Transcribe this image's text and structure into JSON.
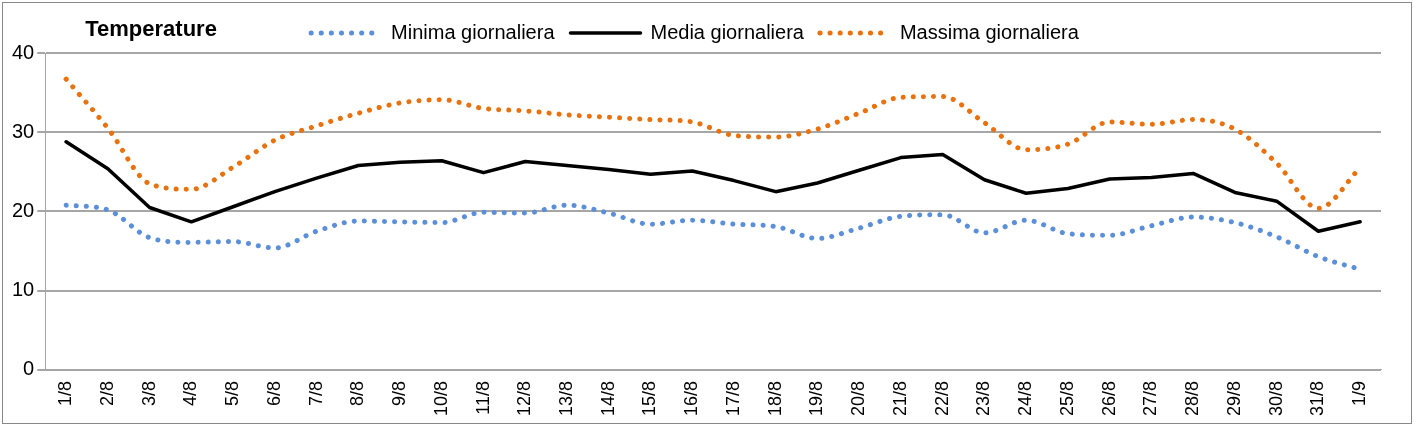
{
  "chart_data": {
    "type": "line",
    "title": "Temperature",
    "categories": [
      "1/8",
      "2/8",
      "3/8",
      "4/8",
      "5/8",
      "6/8",
      "7/8",
      "8/8",
      "9/8",
      "10/8",
      "11/8",
      "12/8",
      "13/8",
      "14/8",
      "15/8",
      "16/8",
      "17/8",
      "18/8",
      "19/8",
      "20/8",
      "21/8",
      "22/8",
      "23/8",
      "24/8",
      "25/8",
      "26/8",
      "27/8",
      "28/8",
      "29/8",
      "30/8",
      "31/8",
      "1/9"
    ],
    "series": [
      {
        "name": "Minima giornaliera",
        "color": "#5b8fd9",
        "line_style": "dotted",
        "values": [
          20.8,
          20.2,
          16.7,
          16.1,
          16.2,
          15.4,
          17.5,
          18.8,
          18.7,
          18.6,
          19.9,
          19.8,
          20.8,
          19.8,
          18.4,
          18.9,
          18.4,
          18.1,
          16.6,
          17.9,
          19.4,
          19.6,
          17.3,
          18.9,
          17.2,
          17.0,
          18.2,
          19.3,
          18.6,
          16.8,
          14.3,
          12.7
        ]
      },
      {
        "name": "Media giornaliera",
        "color": "#000000",
        "line_style": "solid",
        "values": [
          28.8,
          25.4,
          20.5,
          18.7,
          20.6,
          22.5,
          24.2,
          25.8,
          26.2,
          26.4,
          24.9,
          26.3,
          25.8,
          25.3,
          24.7,
          25.1,
          23.9,
          22.5,
          23.6,
          25.2,
          26.8,
          27.2,
          24.0,
          22.3,
          22.9,
          24.1,
          24.3,
          24.8,
          22.4,
          21.3,
          17.5,
          18.7
        ]
      },
      {
        "name": "Massima giornaliera",
        "color": "#e9720f",
        "line_style": "dotted",
        "values": [
          36.7,
          30.5,
          23.5,
          22.8,
          25.6,
          29.0,
          30.8,
          32.4,
          33.7,
          34.1,
          33.0,
          32.7,
          32.2,
          31.9,
          31.6,
          31.3,
          29.6,
          29.4,
          30.4,
          32.4,
          34.4,
          34.5,
          31.2,
          27.8,
          28.5,
          31.3,
          31.0,
          31.6,
          30.4,
          26.1,
          20.4,
          25.5
        ]
      }
    ],
    "ylim": [
      0,
      40
    ],
    "yticks": [
      0,
      10,
      20,
      30,
      40
    ],
    "grid": "y",
    "legend": "top",
    "marker": "none"
  }
}
